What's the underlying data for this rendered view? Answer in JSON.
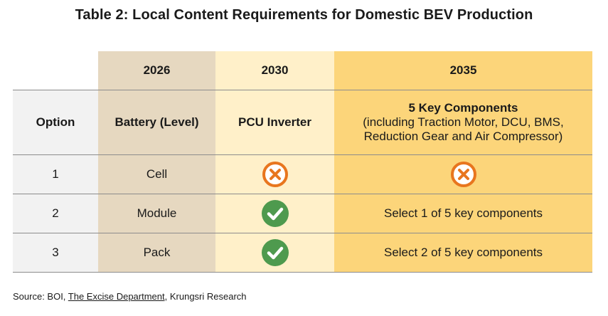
{
  "title": "Table 2: Local Content Requirements for Domestic BEV Production",
  "table": {
    "years": [
      "2026",
      "2030",
      "2035"
    ],
    "headers": {
      "option": "Option",
      "battery": "Battery (Level)",
      "pcu": "PCU Inverter",
      "components_title": "5 Key Components",
      "components_detail_line1": "(including Traction Motor, DCU, BMS,",
      "components_detail_line2": "Reduction Gear and Air Compressor)"
    },
    "rows": [
      {
        "option": "1",
        "battery": "Cell",
        "pcu_icon": "cross-circle-icon",
        "components_icon": "cross-circle-icon",
        "components": ""
      },
      {
        "option": "2",
        "battery": "Module",
        "pcu_icon": "check-circle-icon",
        "components": "Select 1 of 5 key components"
      },
      {
        "option": "3",
        "battery": "Pack",
        "pcu_icon": "check-circle-icon",
        "components": "Select 2 of 5 key components"
      }
    ]
  },
  "source": {
    "prefix": "Source: BOI, ",
    "link": "The Excise Department",
    "suffix": ", Krungsri Research"
  },
  "colors": {
    "option_col": "#f2f2f2",
    "col_2026": "#e6d8c0",
    "col_2030": "#fff0c9",
    "col_2035": "#fcd57a",
    "cross_icon": "#e8761e",
    "check_icon": "#4e9a4e"
  }
}
